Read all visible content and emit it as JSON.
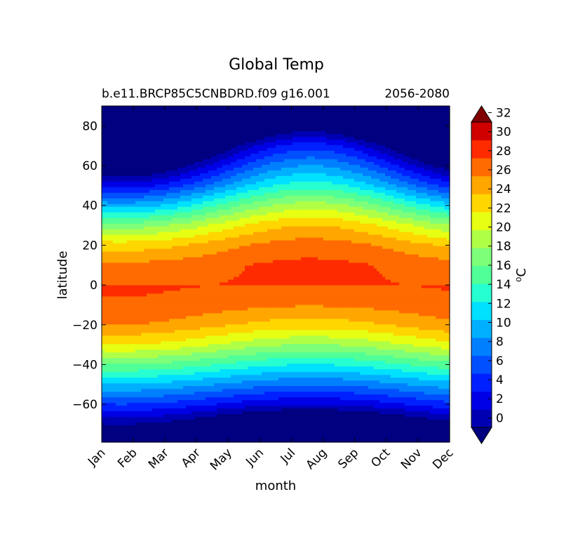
{
  "chart_data": {
    "type": "contourf",
    "title": "Global Temp",
    "subtitle_left": "b.e11.BRCP85C5CNBDRD.f09 g16.001",
    "subtitle_right": "2056-2080",
    "xlabel": "month",
    "ylabel": "latitude",
    "x_ticks": [
      "Jan",
      "Feb",
      "Mar",
      "Apr",
      "May",
      "Jun",
      "Jul",
      "Aug",
      "Sep",
      "Oct",
      "Nov",
      "Dec"
    ],
    "y_ticks": [
      "80",
      "60",
      "40",
      "20",
      "0",
      "−20",
      "−40",
      "−60"
    ],
    "y_tick_values": [
      80,
      60,
      40,
      20,
      0,
      -20,
      -40,
      -60
    ],
    "ylim": [
      -79,
      90
    ],
    "xlim": [
      0,
      11
    ],
    "colorbar": {
      "label": "⁰C",
      "levels": [
        -2,
        0,
        2,
        4,
        6,
        8,
        10,
        12,
        14,
        16,
        18,
        20,
        22,
        24,
        26,
        28,
        30,
        32,
        34
      ],
      "tick_labels": [
        "0",
        "2",
        "4",
        "6",
        "8",
        "10",
        "12",
        "14",
        "16",
        "18",
        "20",
        "22",
        "24",
        "26",
        "28",
        "30",
        "32"
      ],
      "tick_values": [
        0,
        2,
        4,
        6,
        8,
        10,
        12,
        14,
        16,
        18,
        20,
        22,
        24,
        26,
        28,
        30,
        32
      ],
      "colors": [
        "#000080",
        "#0000b3",
        "#0000e6",
        "#0020ff",
        "#0050ff",
        "#0080ff",
        "#00b0ff",
        "#00e0ff",
        "#26ffd1",
        "#50ff97",
        "#7dff7a",
        "#b0ff47",
        "#e6ff13",
        "#ffd600",
        "#ffa600",
        "#ff6b00",
        "#ff2b00",
        "#d00000",
        "#800000"
      ],
      "extend": "both"
    },
    "profile_latitudes": [
      -79,
      -70,
      -60,
      -50,
      -40,
      -30,
      -20,
      -10,
      0,
      10,
      20,
      30,
      40,
      50,
      60,
      70,
      80,
      90
    ],
    "annual_mean_profile": [
      -15,
      -3,
      4,
      10,
      16,
      22,
      26.5,
      29,
      30,
      29.5,
      27,
      22.5,
      16,
      9,
      3,
      -3,
      -12,
      -16
    ],
    "seasonal_amplitude_profile": [
      3,
      3,
      2,
      1.8,
      2,
      2,
      1.5,
      0.8,
      0.3,
      1,
      2,
      3.5,
      5,
      6,
      7,
      8,
      10,
      11
    ],
    "seasonal_phase_month": 6.6
  }
}
